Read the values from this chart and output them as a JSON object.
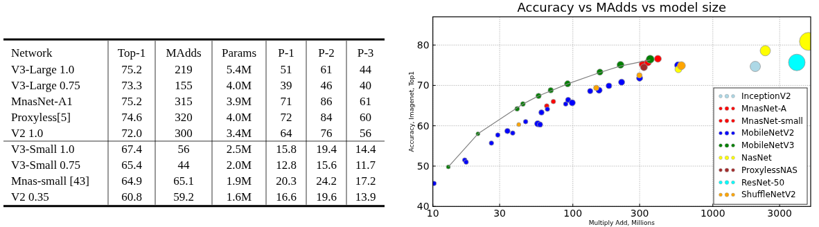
{
  "chart_data": [
    {
      "type": "other",
      "categories": [
        "Network",
        "Top-1",
        "MAdds",
        "Params",
        "P-1",
        "P-2",
        "P-3"
      ],
      "y_categories": [
        "V3-Large 1.0",
        "V3-Large 0.75",
        "MnasNet-A1",
        "Proxyless[5]",
        "V2 1.0",
        "V3-Small 1.0",
        "V3-Small 0.75",
        "Mnas-small [43]",
        "V2 0.35"
      ],
      "cell_labels": [
        [
          "75.2",
          "219",
          "5.4M",
          "51",
          "61",
          "44"
        ],
        [
          "73.3",
          "155",
          "4.0M",
          "39",
          "46",
          "40"
        ],
        [
          "75.2",
          "315",
          "3.9M",
          "71",
          "86",
          "61"
        ],
        [
          "74.6",
          "320",
          "4.0M",
          "72",
          "84",
          "60"
        ],
        [
          "72.0",
          "300",
          "3.4M",
          "64",
          "76",
          "56"
        ],
        [
          "67.4",
          "56",
          "2.5M",
          "15.8",
          "19.4",
          "14.4"
        ],
        [
          "65.4",
          "44",
          "2.0M",
          "12.8",
          "15.6",
          "11.7"
        ],
        [
          "64.9",
          "65.1",
          "1.9M",
          "20.3",
          "24.2",
          "17.2"
        ],
        [
          "60.8",
          "59.2",
          "1.6M",
          "16.6",
          "19.6",
          "13.9"
        ]
      ]
    },
    {
      "type": "bubble",
      "title": "Accuracy vs MAdds vs model size",
      "xlabel": "Multiply Add, Millions",
      "ylabel": "Accuracy, Imagenet, Top1",
      "log": "x",
      "xlim": [
        10,
        5000
      ],
      "xticks": [
        10,
        30,
        100,
        300,
        1000,
        3000
      ],
      "ylim": [
        40,
        87
      ],
      "yticks": [
        40,
        50,
        60,
        70,
        80
      ],
      "grid": true,
      "legend": "bottom right",
      "marker": "circle",
      "series": [
        {
          "type": "line",
          "marker": "none",
          "color": "#808080",
          "x": [
            12.9,
            21,
            44,
            57,
            92,
            156,
            219,
            357
          ],
          "values": [
            49.8,
            58,
            65.4,
            67.4,
            70.4,
            73.2,
            74.8,
            76.3
          ]
        },
        {
          "name": "InceptionV2",
          "color": "#add8e6",
          "x": [
            2010
          ],
          "values": [
            74.7
          ],
          "sizes": [
            0.33
          ]
        },
        {
          "name": "MnasNet-A",
          "color": "#ff0000",
          "x": [
            315,
            344,
            405
          ],
          "values": [
            75.2,
            75.7,
            76.6
          ],
          "sizes": [
            0.15,
            0.15,
            0.15
          ]
        },
        {
          "name": "MnasNet-small",
          "color": "#ff0000",
          "x": [
            65.1,
            72.6
          ],
          "values": [
            64.9,
            66.0
          ],
          "sizes": [
            0.065,
            0.065
          ]
        },
        {
          "name": "MobileNetV2",
          "color": "#0000ff",
          "x": [
            10.2,
            16.9,
            17.3,
            26.2,
            29.1,
            34.1,
            37.2,
            46,
            56.1,
            58.3,
            59.7,
            65.8,
            88.9,
            92.6,
            99,
            133,
            154,
            181,
            223,
            300,
            564
          ],
          "values": [
            45.7,
            51.5,
            51,
            55.7,
            57.7,
            58.7,
            58.2,
            61,
            60.5,
            60.3,
            63.3,
            64.1,
            65.4,
            66.4,
            65.7,
            68.6,
            68.8,
            69.9,
            70.8,
            71.8,
            75.0
          ],
          "sizes": [
            0.065,
            0.065,
            0.065,
            0.065,
            0.065,
            0.09,
            0.065,
            0.065,
            0.12,
            0.09,
            0.09,
            0.065,
            0.065,
            0.09,
            0.12,
            0.09,
            0.12,
            0.1,
            0.12,
            0.12,
            0.15
          ]
        },
        {
          "name": "MobileNetV3",
          "color": "#008000",
          "x": [
            12.9,
            21,
            40,
            44,
            56.9,
            69.5,
            91.8,
            156,
            219,
            357
          ],
          "values": [
            49.8,
            58,
            64.2,
            65.4,
            67.4,
            68.8,
            70.4,
            73.3,
            75.1,
            76.5
          ],
          "sizes": [
            0.05,
            0.05,
            0.07,
            0.07,
            0.09,
            0.09,
            0.12,
            0.12,
            0.15,
            0.2
          ]
        },
        {
          "name": "NasNet",
          "color": "#ffff00",
          "x": [
            568,
            2370,
            4820
          ],
          "values": [
            74.0,
            78.6,
            80.9
          ],
          "sizes": [
            0.15,
            0.33,
            1
          ]
        },
        {
          "name": "ProxylessNAS",
          "color": "#a52a2a",
          "x": [
            322
          ],
          "values": [
            74.5
          ],
          "sizes": [
            0.15
          ]
        },
        {
          "name": "ResNet-50",
          "color": "#00ffff",
          "x": [
            3980
          ],
          "values": [
            75.7
          ],
          "sizes": [
            0.85
          ]
        },
        {
          "name": "ShuffleNetV2",
          "color": "#ffa500",
          "x": [
            41.1,
            147,
            299,
            596
          ],
          "values": [
            60.3,
            69.4,
            72.5,
            74.9
          ],
          "sizes": [
            0.05,
            0.09,
            0.09,
            0.2
          ]
        }
      ]
    }
  ]
}
